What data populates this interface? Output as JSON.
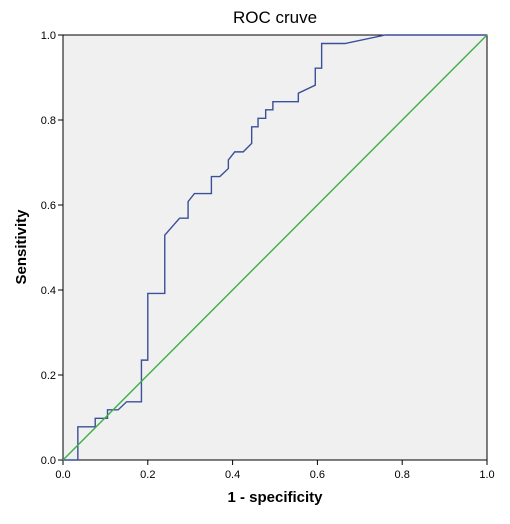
{
  "chart_data": {
    "type": "line",
    "title": "ROC cruve",
    "xlabel": "1 - specificity",
    "ylabel": "Sensitivity",
    "xlim": [
      0,
      1
    ],
    "ylim": [
      0,
      1
    ],
    "x_ticks": [
      "0.0",
      "0.2",
      "0.4",
      "0.6",
      "0.8",
      "1.0"
    ],
    "y_ticks": [
      "0.0",
      "0.2",
      "0.4",
      "0.6",
      "0.8",
      "1.0"
    ],
    "grid": false,
    "plot_background": "#f0f0f0",
    "colors": {
      "roc": "#3b4f9a",
      "reference": "#3cb043"
    },
    "series": [
      {
        "points": [
          [
            0.0,
            0.0
          ],
          [
            0.035,
            0.0
          ],
          [
            0.035,
            0.078
          ],
          [
            0.076,
            0.078
          ],
          [
            0.076,
            0.098
          ],
          [
            0.105,
            0.098
          ],
          [
            0.105,
            0.118
          ],
          [
            0.13,
            0.118
          ],
          [
            0.15,
            0.137
          ],
          [
            0.185,
            0.137
          ],
          [
            0.185,
            0.235
          ],
          [
            0.2,
            0.235
          ],
          [
            0.2,
            0.392
          ],
          [
            0.24,
            0.392
          ],
          [
            0.24,
            0.529
          ],
          [
            0.275,
            0.569
          ],
          [
            0.295,
            0.569
          ],
          [
            0.295,
            0.608
          ],
          [
            0.31,
            0.627
          ],
          [
            0.35,
            0.627
          ],
          [
            0.35,
            0.667
          ],
          [
            0.37,
            0.667
          ],
          [
            0.39,
            0.686
          ],
          [
            0.39,
            0.706
          ],
          [
            0.405,
            0.725
          ],
          [
            0.425,
            0.725
          ],
          [
            0.445,
            0.745
          ],
          [
            0.445,
            0.784
          ],
          [
            0.46,
            0.784
          ],
          [
            0.46,
            0.804
          ],
          [
            0.478,
            0.804
          ],
          [
            0.478,
            0.824
          ],
          [
            0.495,
            0.824
          ],
          [
            0.495,
            0.843
          ],
          [
            0.555,
            0.843
          ],
          [
            0.555,
            0.863
          ],
          [
            0.595,
            0.882
          ],
          [
            0.595,
            0.922
          ],
          [
            0.61,
            0.922
          ],
          [
            0.61,
            0.98
          ],
          [
            0.665,
            0.98
          ],
          [
            0.76,
            1.0
          ],
          [
            1.0,
            1.0
          ]
        ]
      },
      {
        "points": [
          [
            0,
            0
          ],
          [
            1,
            1
          ]
        ]
      }
    ]
  }
}
